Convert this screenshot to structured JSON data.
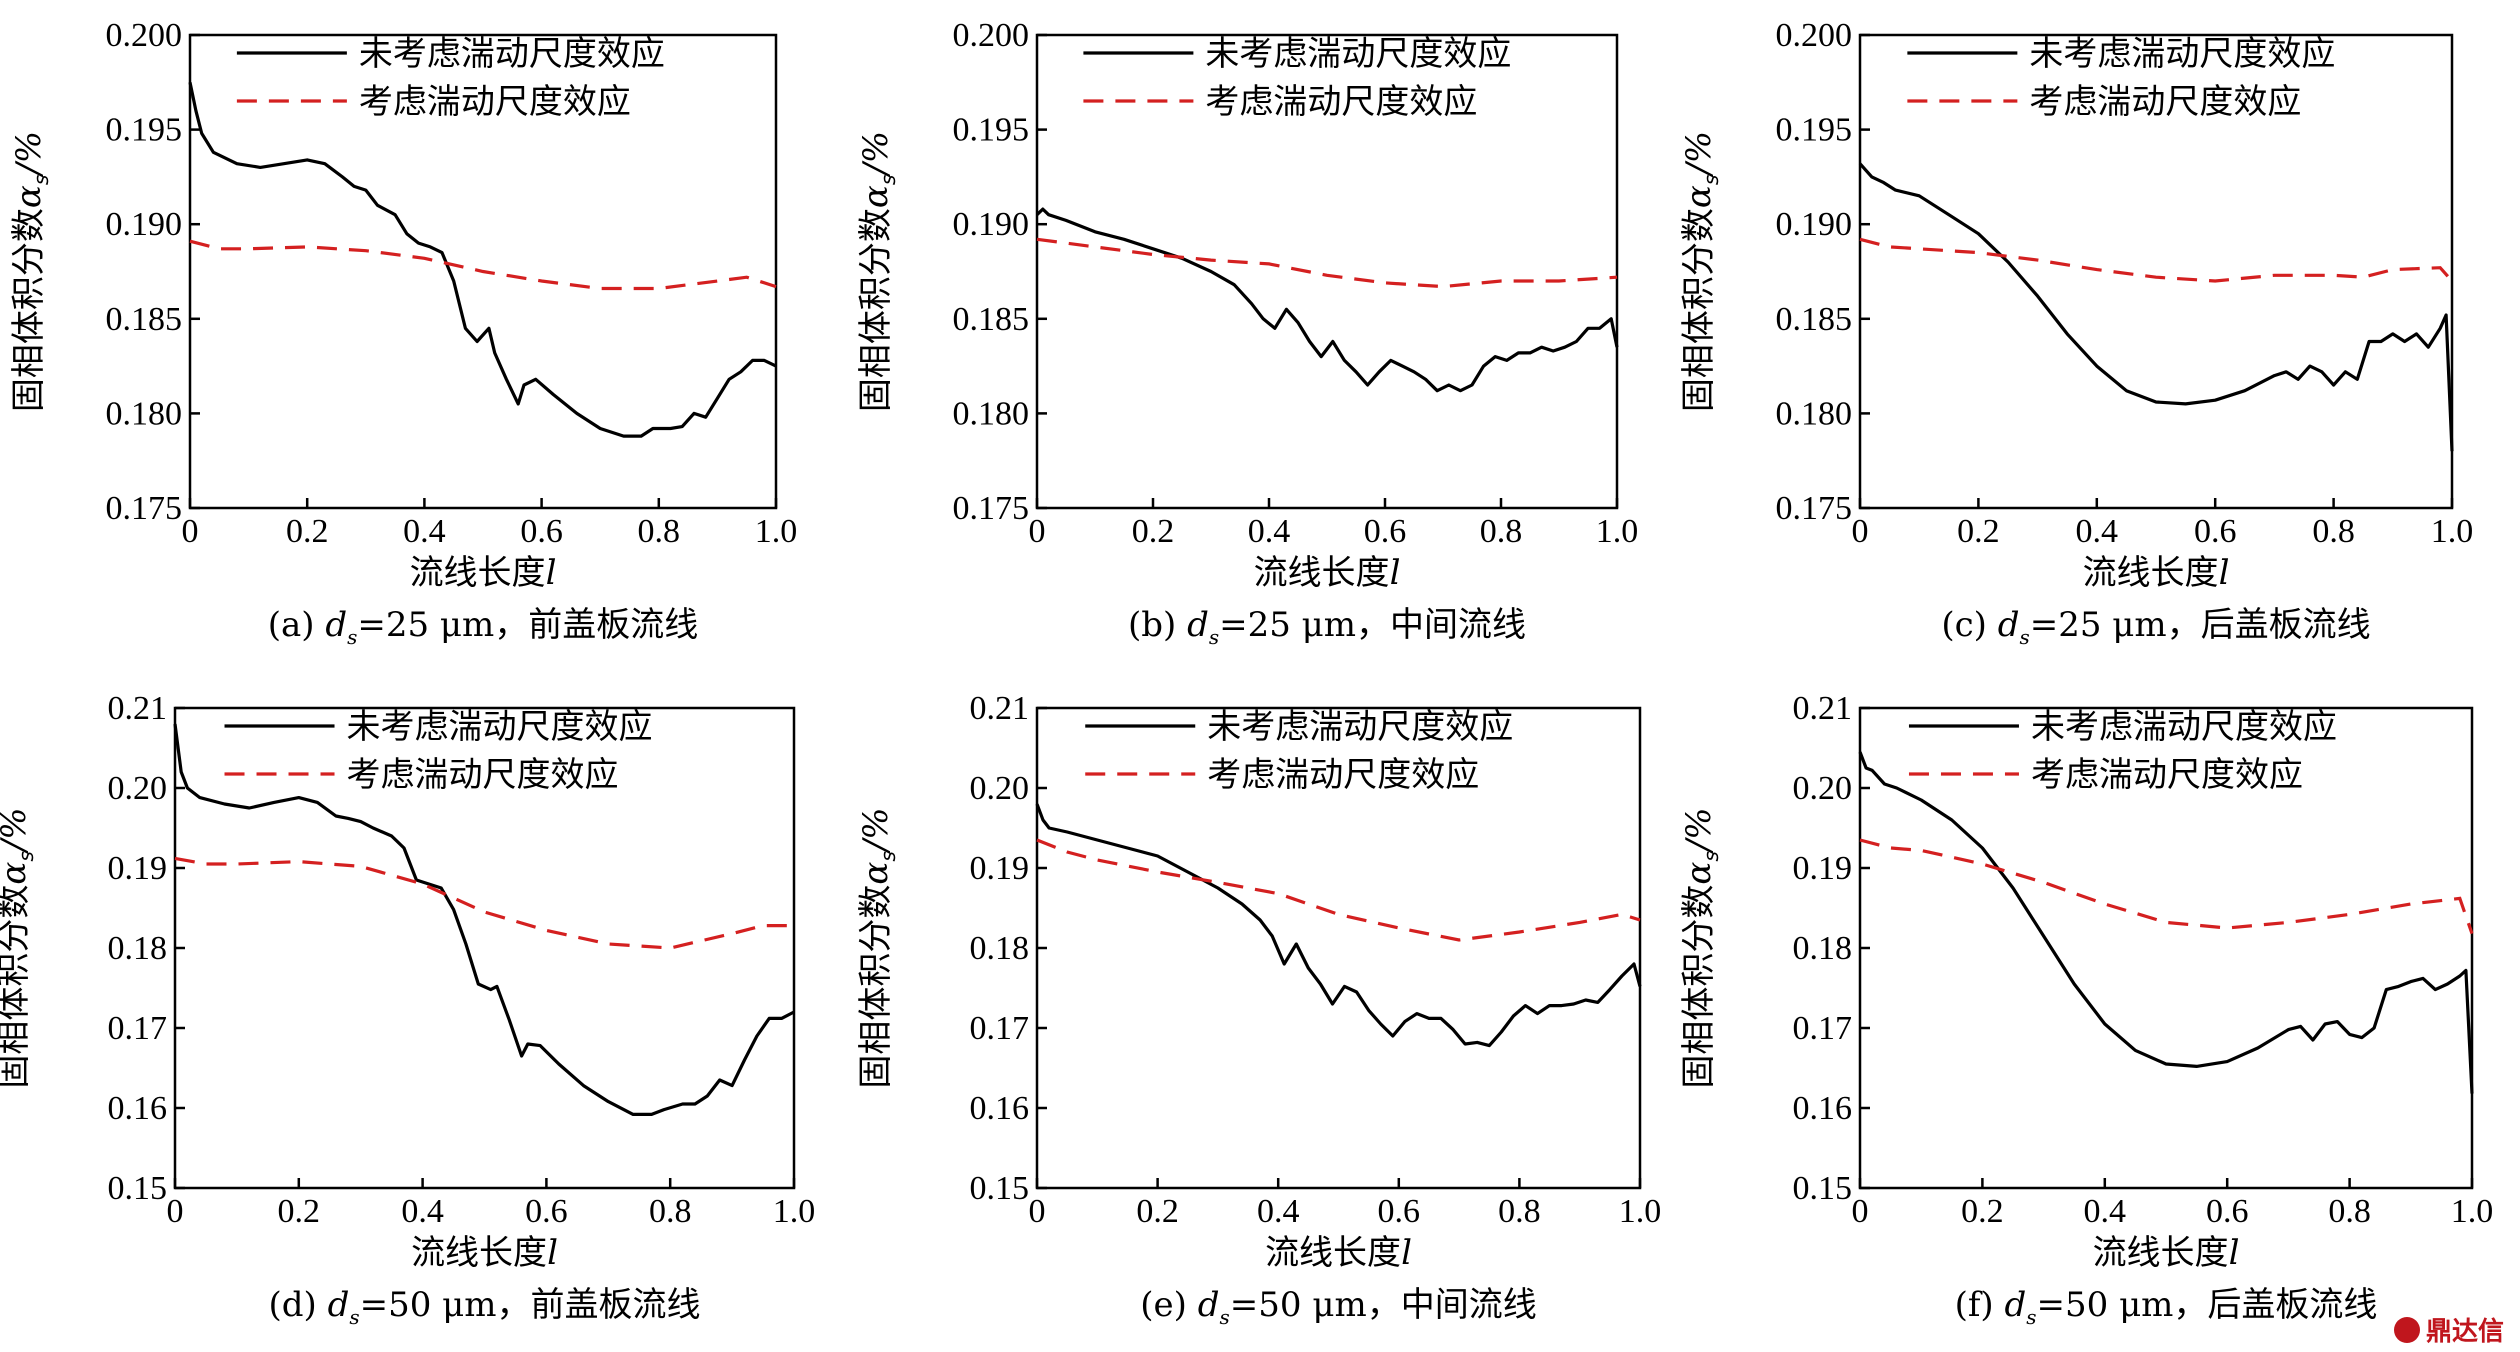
{
  "watermark": "鼎达信",
  "chart_data": [
    {
      "type": "line",
      "panel": "a",
      "caption": {
        "prefix": "(a) ",
        "d": "d",
        "sub": "s",
        "rest": "=25 μm，前盖板流线"
      },
      "xlabel": {
        "text": "流线长度",
        "var": "l"
      },
      "ylabel": {
        "text": "固相体积分数",
        "var": "α",
        "sub": "s",
        "unit": "/%"
      },
      "xlim": [
        0,
        1
      ],
      "ylim": [
        0.175,
        0.2
      ],
      "xticks": [
        0,
        0.2,
        0.4,
        0.6,
        0.8,
        1.0
      ],
      "xtick_labels": [
        "0",
        "0.2",
        "0.4",
        "0.6",
        "0.8",
        "1.0"
      ],
      "yticks": [
        0.175,
        0.18,
        0.185,
        0.19,
        0.195,
        0.2
      ],
      "ytick_labels": [
        "0.175",
        "0.180",
        "0.185",
        "0.190",
        "0.195",
        "0.200"
      ],
      "series": [
        {
          "name": "未考虑湍动尺度效应",
          "style": "solid",
          "color": "#000000",
          "x": [
            0,
            0.01,
            0.02,
            0.04,
            0.08,
            0.12,
            0.16,
            0.2,
            0.23,
            0.26,
            0.28,
            0.3,
            0.32,
            0.35,
            0.37,
            0.39,
            0.41,
            0.43,
            0.45,
            0.47,
            0.49,
            0.51,
            0.52,
            0.54,
            0.56,
            0.57,
            0.59,
            0.62,
            0.66,
            0.7,
            0.74,
            0.77,
            0.79,
            0.82,
            0.84,
            0.86,
            0.88,
            0.9,
            0.92,
            0.94,
            0.96,
            0.98,
            1.0
          ],
          "y": [
            0.1975,
            0.196,
            0.1948,
            0.1938,
            0.1932,
            0.193,
            0.1932,
            0.1934,
            0.1932,
            0.1925,
            0.192,
            0.1918,
            0.191,
            0.1905,
            0.1895,
            0.189,
            0.1888,
            0.1885,
            0.187,
            0.1845,
            0.1838,
            0.1845,
            0.1832,
            0.1818,
            0.1805,
            0.1815,
            0.1818,
            0.181,
            0.18,
            0.1792,
            0.1788,
            0.1788,
            0.1792,
            0.1792,
            0.1793,
            0.18,
            0.1798,
            0.1808,
            0.1818,
            0.1822,
            0.1828,
            0.1828,
            0.1825
          ]
        },
        {
          "name": "考虑湍动尺度效应",
          "style": "dashed",
          "color": "#d42020",
          "x": [
            0,
            0.05,
            0.1,
            0.2,
            0.3,
            0.4,
            0.5,
            0.6,
            0.7,
            0.8,
            0.9,
            0.95,
            1.0
          ],
          "y": [
            0.1891,
            0.1887,
            0.1887,
            0.1888,
            0.1886,
            0.1882,
            0.1875,
            0.187,
            0.1866,
            0.1866,
            0.187,
            0.1872,
            0.1867
          ]
        }
      ]
    },
    {
      "type": "line",
      "panel": "b",
      "caption": {
        "prefix": "(b) ",
        "d": "d",
        "sub": "s",
        "rest": "=25 μm，中间流线"
      },
      "xlabel": {
        "text": "流线长度",
        "var": "l"
      },
      "ylabel": {
        "text": "固相体积分数",
        "var": "α",
        "sub": "s",
        "unit": "/%"
      },
      "xlim": [
        0,
        1
      ],
      "ylim": [
        0.175,
        0.2
      ],
      "xticks": [
        0,
        0.2,
        0.4,
        0.6,
        0.8,
        1.0
      ],
      "xtick_labels": [
        "0",
        "0.2",
        "0.4",
        "0.6",
        "0.8",
        "1.0"
      ],
      "yticks": [
        0.175,
        0.18,
        0.185,
        0.19,
        0.195,
        0.2
      ],
      "ytick_labels": [
        "0.175",
        "0.180",
        "0.185",
        "0.190",
        "0.195",
        "0.200"
      ],
      "series": [
        {
          "name": "未考虑湍动尺度效应",
          "style": "solid",
          "color": "#000000",
          "x": [
            0,
            0.01,
            0.02,
            0.05,
            0.1,
            0.15,
            0.2,
            0.25,
            0.3,
            0.34,
            0.37,
            0.39,
            0.41,
            0.43,
            0.45,
            0.47,
            0.49,
            0.51,
            0.53,
            0.55,
            0.57,
            0.59,
            0.61,
            0.63,
            0.65,
            0.67,
            0.69,
            0.71,
            0.73,
            0.75,
            0.77,
            0.79,
            0.81,
            0.83,
            0.85,
            0.87,
            0.89,
            0.91,
            0.93,
            0.95,
            0.97,
            0.99,
            1.0
          ],
          "y": [
            0.1905,
            0.1908,
            0.1905,
            0.1902,
            0.1896,
            0.1892,
            0.1887,
            0.1882,
            0.1875,
            0.1868,
            0.1858,
            0.185,
            0.1845,
            0.1855,
            0.1848,
            0.1838,
            0.183,
            0.1838,
            0.1828,
            0.1822,
            0.1815,
            0.1822,
            0.1828,
            0.1825,
            0.1822,
            0.1818,
            0.1812,
            0.1815,
            0.1812,
            0.1815,
            0.1825,
            0.183,
            0.1828,
            0.1832,
            0.1832,
            0.1835,
            0.1833,
            0.1835,
            0.1838,
            0.1845,
            0.1845,
            0.185,
            0.1835
          ]
        },
        {
          "name": "考虑湍动尺度效应",
          "style": "dashed",
          "color": "#d42020",
          "x": [
            0,
            0.1,
            0.2,
            0.3,
            0.4,
            0.5,
            0.6,
            0.7,
            0.8,
            0.9,
            1.0
          ],
          "y": [
            0.1892,
            0.1888,
            0.1884,
            0.1881,
            0.1879,
            0.1873,
            0.1869,
            0.1867,
            0.187,
            0.187,
            0.1872
          ]
        }
      ]
    },
    {
      "type": "line",
      "panel": "c",
      "caption": {
        "prefix": "(c) ",
        "d": "d",
        "sub": "s",
        "rest": "=25 μm，后盖板流线"
      },
      "xlabel": {
        "text": "流线长度",
        "var": "l"
      },
      "ylabel": {
        "text": "固相体积分数",
        "var": "α",
        "sub": "s",
        "unit": "/%"
      },
      "xlim": [
        0,
        1
      ],
      "ylim": [
        0.175,
        0.2
      ],
      "xticks": [
        0,
        0.2,
        0.4,
        0.6,
        0.8,
        1.0
      ],
      "xtick_labels": [
        "0",
        "0.2",
        "0.4",
        "0.6",
        "0.8",
        "1.0"
      ],
      "yticks": [
        0.175,
        0.18,
        0.185,
        0.19,
        0.195,
        0.2
      ],
      "ytick_labels": [
        "0.175",
        "0.180",
        "0.185",
        "0.190",
        "0.195",
        "0.200"
      ],
      "series": [
        {
          "name": "未考虑湍动尺度效应",
          "style": "solid",
          "color": "#000000",
          "x": [
            0,
            0.02,
            0.04,
            0.06,
            0.1,
            0.15,
            0.2,
            0.25,
            0.3,
            0.35,
            0.4,
            0.45,
            0.5,
            0.55,
            0.6,
            0.65,
            0.7,
            0.72,
            0.74,
            0.76,
            0.78,
            0.8,
            0.82,
            0.84,
            0.86,
            0.88,
            0.9,
            0.92,
            0.94,
            0.96,
            0.98,
            0.99,
            1.0
          ],
          "y": [
            0.1932,
            0.1925,
            0.1922,
            0.1918,
            0.1915,
            0.1905,
            0.1895,
            0.188,
            0.1862,
            0.1842,
            0.1825,
            0.1812,
            0.1806,
            0.1805,
            0.1807,
            0.1812,
            0.182,
            0.1822,
            0.1818,
            0.1825,
            0.1822,
            0.1815,
            0.1822,
            0.1818,
            0.1838,
            0.1838,
            0.1842,
            0.1838,
            0.1842,
            0.1835,
            0.1845,
            0.1852,
            0.178
          ]
        },
        {
          "name": "考虑湍动尺度效应",
          "style": "dashed",
          "color": "#d42020",
          "x": [
            0,
            0.05,
            0.1,
            0.2,
            0.3,
            0.4,
            0.5,
            0.6,
            0.7,
            0.8,
            0.85,
            0.9,
            0.98,
            1.0
          ],
          "y": [
            0.1892,
            0.1888,
            0.1887,
            0.1885,
            0.1881,
            0.1876,
            0.1872,
            0.187,
            0.1873,
            0.1873,
            0.1872,
            0.1876,
            0.1877,
            0.187
          ]
        }
      ]
    },
    {
      "type": "line",
      "panel": "d",
      "caption": {
        "prefix": "(d) ",
        "d": "d",
        "sub": "s",
        "rest": "=50 μm，前盖板流线"
      },
      "xlabel": {
        "text": "流线长度",
        "var": "l"
      },
      "ylabel": {
        "text": "固相体积分数",
        "var": "α",
        "sub": "s",
        "unit": "/%"
      },
      "xlim": [
        0,
        1
      ],
      "ylim": [
        0.15,
        0.21
      ],
      "xticks": [
        0,
        0.2,
        0.4,
        0.6,
        0.8,
        1.0
      ],
      "xtick_labels": [
        "0",
        "0.2",
        "0.4",
        "0.6",
        "0.8",
        "1.0"
      ],
      "yticks": [
        0.15,
        0.16,
        0.17,
        0.18,
        0.19,
        0.2,
        0.21
      ],
      "ytick_labels": [
        "0.15",
        "0.16",
        "0.17",
        "0.18",
        "0.19",
        "0.20",
        "0.21"
      ],
      "series": [
        {
          "name": "未考虑湍动尺度效应",
          "style": "solid",
          "color": "#000000",
          "x": [
            0,
            0.01,
            0.02,
            0.04,
            0.08,
            0.12,
            0.16,
            0.2,
            0.23,
            0.26,
            0.28,
            0.3,
            0.32,
            0.35,
            0.37,
            0.39,
            0.41,
            0.43,
            0.45,
            0.47,
            0.49,
            0.51,
            0.52,
            0.54,
            0.56,
            0.57,
            0.59,
            0.62,
            0.66,
            0.7,
            0.74,
            0.77,
            0.79,
            0.82,
            0.84,
            0.86,
            0.88,
            0.9,
            0.92,
            0.94,
            0.96,
            0.98,
            1.0
          ],
          "y": [
            0.208,
            0.202,
            0.2,
            0.1988,
            0.198,
            0.1975,
            0.1982,
            0.1988,
            0.1982,
            0.1965,
            0.1962,
            0.1958,
            0.195,
            0.194,
            0.1925,
            0.1885,
            0.188,
            0.1875,
            0.1848,
            0.1805,
            0.1755,
            0.1748,
            0.1752,
            0.171,
            0.1665,
            0.168,
            0.1678,
            0.1655,
            0.1628,
            0.1608,
            0.1592,
            0.1592,
            0.1598,
            0.1605,
            0.1605,
            0.1615,
            0.1635,
            0.1628,
            0.166,
            0.169,
            0.1712,
            0.1712,
            0.172
          ]
        },
        {
          "name": "考虑湍动尺度效应",
          "style": "dashed",
          "color": "#d42020",
          "x": [
            0,
            0.05,
            0.1,
            0.2,
            0.3,
            0.4,
            0.5,
            0.6,
            0.7,
            0.8,
            0.9,
            0.95,
            1.0
          ],
          "y": [
            0.1912,
            0.1905,
            0.1905,
            0.1908,
            0.1902,
            0.188,
            0.1845,
            0.1822,
            0.1805,
            0.18,
            0.1818,
            0.1828,
            0.1828
          ]
        }
      ]
    },
    {
      "type": "line",
      "panel": "e",
      "caption": {
        "prefix": "(e) ",
        "d": "d",
        "sub": "s",
        "rest": "=50 μm，中间流线"
      },
      "xlabel": {
        "text": "流线长度",
        "var": "l"
      },
      "ylabel": {
        "text": "固相体积分数",
        "var": "α",
        "sub": "s",
        "unit": "/%"
      },
      "xlim": [
        0,
        1
      ],
      "ylim": [
        0.15,
        0.21
      ],
      "xticks": [
        0,
        0.2,
        0.4,
        0.6,
        0.8,
        1.0
      ],
      "xtick_labels": [
        "0",
        "0.2",
        "0.4",
        "0.6",
        "0.8",
        "1.0"
      ],
      "yticks": [
        0.15,
        0.16,
        0.17,
        0.18,
        0.19,
        0.2,
        0.21
      ],
      "ytick_labels": [
        "0.15",
        "0.16",
        "0.17",
        "0.18",
        "0.19",
        "0.20",
        "0.21"
      ],
      "series": [
        {
          "name": "未考虑湍动尺度效应",
          "style": "solid",
          "color": "#000000",
          "x": [
            0,
            0.01,
            0.02,
            0.05,
            0.1,
            0.15,
            0.2,
            0.25,
            0.3,
            0.34,
            0.37,
            0.39,
            0.41,
            0.43,
            0.45,
            0.47,
            0.49,
            0.51,
            0.53,
            0.55,
            0.57,
            0.59,
            0.61,
            0.63,
            0.65,
            0.67,
            0.69,
            0.71,
            0.73,
            0.75,
            0.77,
            0.79,
            0.81,
            0.83,
            0.85,
            0.87,
            0.89,
            0.91,
            0.93,
            0.95,
            0.97,
            0.99,
            1.0
          ],
          "y": [
            0.198,
            0.196,
            0.195,
            0.1945,
            0.1935,
            0.1925,
            0.1915,
            0.1895,
            0.1875,
            0.1855,
            0.1835,
            0.1815,
            0.178,
            0.1805,
            0.1775,
            0.1755,
            0.173,
            0.1752,
            0.1745,
            0.1722,
            0.1705,
            0.169,
            0.1708,
            0.1718,
            0.1712,
            0.1712,
            0.1698,
            0.168,
            0.1682,
            0.1678,
            0.1695,
            0.1715,
            0.1728,
            0.1718,
            0.1728,
            0.1728,
            0.173,
            0.1735,
            0.1732,
            0.1748,
            0.1765,
            0.178,
            0.1752
          ]
        },
        {
          "name": "考虑湍动尺度效应",
          "style": "dashed",
          "color": "#d42020",
          "x": [
            0,
            0.05,
            0.1,
            0.2,
            0.3,
            0.4,
            0.5,
            0.6,
            0.7,
            0.8,
            0.9,
            0.97,
            1.0
          ],
          "y": [
            0.1935,
            0.192,
            0.191,
            0.1895,
            0.1882,
            0.1868,
            0.1842,
            0.1825,
            0.181,
            0.182,
            0.1832,
            0.1842,
            0.1835
          ]
        }
      ]
    },
    {
      "type": "line",
      "panel": "f",
      "caption": {
        "prefix": "(f) ",
        "d": "d",
        "sub": "s",
        "rest": "=50 μm，后盖板流线"
      },
      "xlabel": {
        "text": "流线长度",
        "var": "l"
      },
      "ylabel": {
        "text": "固相体积分数",
        "var": "α",
        "sub": "s",
        "unit": "/%"
      },
      "xlim": [
        0,
        1
      ],
      "ylim": [
        0.15,
        0.21
      ],
      "xticks": [
        0,
        0.2,
        0.4,
        0.6,
        0.8,
        1.0
      ],
      "xtick_labels": [
        "0",
        "0.2",
        "0.4",
        "0.6",
        "0.8",
        "1.0"
      ],
      "yticks": [
        0.15,
        0.16,
        0.17,
        0.18,
        0.19,
        0.2,
        0.21
      ],
      "ytick_labels": [
        "0.15",
        "0.16",
        "0.17",
        "0.18",
        "0.19",
        "0.20",
        "0.21"
      ],
      "series": [
        {
          "name": "未考虑湍动尺度效应",
          "style": "solid",
          "color": "#000000",
          "x": [
            0,
            0.01,
            0.02,
            0.04,
            0.06,
            0.1,
            0.15,
            0.2,
            0.25,
            0.3,
            0.35,
            0.4,
            0.45,
            0.5,
            0.55,
            0.6,
            0.65,
            0.7,
            0.72,
            0.74,
            0.76,
            0.78,
            0.8,
            0.82,
            0.84,
            0.86,
            0.88,
            0.9,
            0.92,
            0.94,
            0.96,
            0.98,
            0.99,
            1.0
          ],
          "y": [
            0.2045,
            0.2025,
            0.2022,
            0.2005,
            0.2,
            0.1985,
            0.196,
            0.1925,
            0.1875,
            0.1815,
            0.1755,
            0.1705,
            0.1672,
            0.1655,
            0.1652,
            0.1658,
            0.1675,
            0.1698,
            0.1702,
            0.1685,
            0.1705,
            0.1708,
            0.1692,
            0.1688,
            0.17,
            0.1748,
            0.1752,
            0.1758,
            0.1762,
            0.1748,
            0.1755,
            0.1765,
            0.1772,
            0.1618
          ]
        },
        {
          "name": "考虑湍动尺度效应",
          "style": "dashed",
          "color": "#d42020",
          "x": [
            0,
            0.05,
            0.1,
            0.2,
            0.3,
            0.4,
            0.5,
            0.6,
            0.7,
            0.8,
            0.9,
            0.98,
            1.0
          ],
          "y": [
            0.1935,
            0.1925,
            0.1922,
            0.1905,
            0.1882,
            0.1855,
            0.1832,
            0.1825,
            0.1832,
            0.1842,
            0.1855,
            0.1862,
            0.1818
          ]
        }
      ]
    }
  ]
}
